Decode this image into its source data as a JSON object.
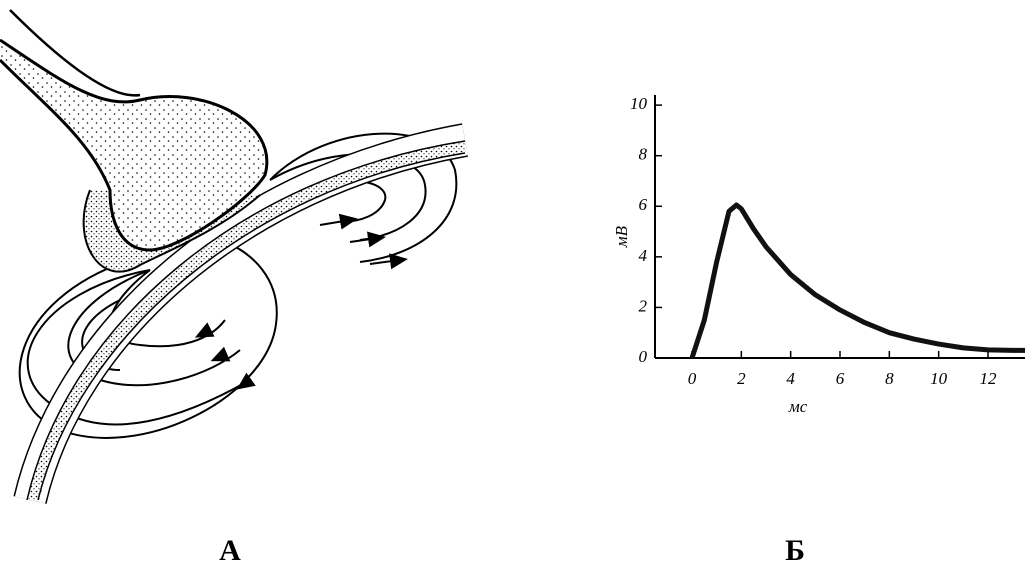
{
  "panel_labels": [
    "А",
    "Б"
  ],
  "chart_data": {
    "type": "line",
    "xlabel": "мс",
    "ylabel": "мВ",
    "x": [
      0,
      0.5,
      1,
      1.5,
      1.8,
      2,
      2.5,
      3,
      4,
      5,
      6,
      7,
      8,
      9,
      10,
      11,
      12,
      13,
      13.5
    ],
    "series": [
      {
        "color": "#111111",
        "values": [
          0,
          1.5,
          3.8,
          5.8,
          6.05,
          5.9,
          5.1,
          4.4,
          3.3,
          2.5,
          1.9,
          1.4,
          1.0,
          0.75,
          0.55,
          0.4,
          0.32,
          0.3,
          0.3
        ]
      }
    ],
    "xlim": [
      -1.5,
      13.5
    ],
    "ylim": [
      0,
      10.4
    ],
    "xticks": [
      0,
      2,
      4,
      6,
      8,
      10,
      12
    ],
    "yticks": [
      0,
      2,
      4,
      6,
      8,
      10
    ]
  }
}
